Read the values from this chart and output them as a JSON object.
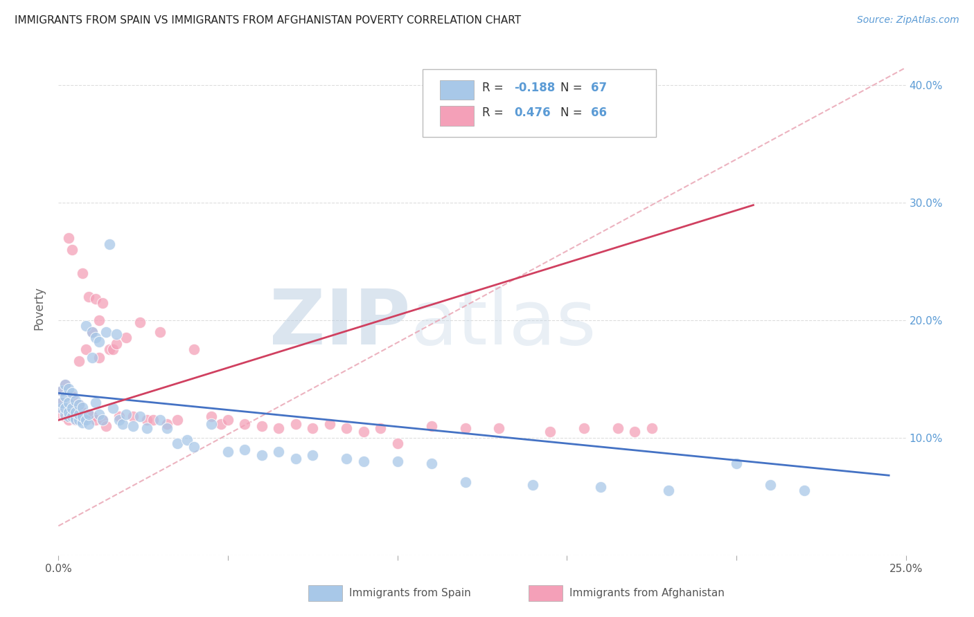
{
  "title": "IMMIGRANTS FROM SPAIN VS IMMIGRANTS FROM AFGHANISTAN POVERTY CORRELATION CHART",
  "source": "Source: ZipAtlas.com",
  "ylabel": "Poverty",
  "xlim": [
    0.0,
    0.25
  ],
  "ylim": [
    0.0,
    0.42
  ],
  "legend_r_spain": "-0.188",
  "legend_n_spain": "67",
  "legend_r_afghan": "0.476",
  "legend_n_afghan": "66",
  "spain_color": "#A8C8E8",
  "afghan_color": "#F4A0B8",
  "spain_line_color": "#4472C4",
  "afghan_line_color": "#D04060",
  "diagonal_color": "#E8A0B0",
  "watermark_zip": "ZIP",
  "watermark_atlas": "atlas",
  "background_color": "#FFFFFF",
  "grid_color": "#DDDDDD",
  "title_color": "#222222",
  "right_tick_color": "#5B9BD5",
  "spain_scatter_x": [
    0.001,
    0.001,
    0.001,
    0.002,
    0.002,
    0.002,
    0.002,
    0.003,
    0.003,
    0.003,
    0.003,
    0.004,
    0.004,
    0.004,
    0.005,
    0.005,
    0.005,
    0.006,
    0.006,
    0.006,
    0.007,
    0.007,
    0.007,
    0.008,
    0.008,
    0.009,
    0.009,
    0.01,
    0.01,
    0.011,
    0.011,
    0.012,
    0.012,
    0.013,
    0.014,
    0.015,
    0.016,
    0.017,
    0.018,
    0.019,
    0.02,
    0.022,
    0.024,
    0.026,
    0.03,
    0.032,
    0.035,
    0.038,
    0.04,
    0.045,
    0.05,
    0.055,
    0.06,
    0.065,
    0.07,
    0.075,
    0.085,
    0.09,
    0.1,
    0.11,
    0.12,
    0.14,
    0.16,
    0.18,
    0.2,
    0.21,
    0.22
  ],
  "spain_scatter_y": [
    0.125,
    0.13,
    0.14,
    0.12,
    0.125,
    0.135,
    0.145,
    0.118,
    0.122,
    0.13,
    0.142,
    0.118,
    0.125,
    0.138,
    0.116,
    0.122,
    0.132,
    0.115,
    0.12,
    0.128,
    0.113,
    0.118,
    0.126,
    0.115,
    0.195,
    0.112,
    0.12,
    0.168,
    0.19,
    0.185,
    0.13,
    0.182,
    0.12,
    0.115,
    0.19,
    0.265,
    0.125,
    0.188,
    0.115,
    0.112,
    0.12,
    0.11,
    0.118,
    0.108,
    0.115,
    0.108,
    0.095,
    0.098,
    0.092,
    0.112,
    0.088,
    0.09,
    0.085,
    0.088,
    0.082,
    0.085,
    0.082,
    0.08,
    0.08,
    0.078,
    0.062,
    0.06,
    0.058,
    0.055,
    0.078,
    0.06,
    0.055
  ],
  "afghan_scatter_x": [
    0.001,
    0.001,
    0.001,
    0.002,
    0.002,
    0.002,
    0.003,
    0.003,
    0.003,
    0.004,
    0.004,
    0.004,
    0.005,
    0.005,
    0.006,
    0.006,
    0.006,
    0.007,
    0.007,
    0.008,
    0.008,
    0.009,
    0.009,
    0.01,
    0.01,
    0.011,
    0.011,
    0.012,
    0.012,
    0.013,
    0.013,
    0.014,
    0.015,
    0.016,
    0.017,
    0.018,
    0.02,
    0.022,
    0.024,
    0.026,
    0.028,
    0.03,
    0.032,
    0.035,
    0.04,
    0.045,
    0.048,
    0.05,
    0.055,
    0.06,
    0.065,
    0.07,
    0.075,
    0.08,
    0.085,
    0.09,
    0.095,
    0.1,
    0.11,
    0.12,
    0.13,
    0.145,
    0.155,
    0.165,
    0.17,
    0.175
  ],
  "afghan_scatter_y": [
    0.12,
    0.13,
    0.14,
    0.118,
    0.126,
    0.145,
    0.115,
    0.125,
    0.27,
    0.12,
    0.135,
    0.26,
    0.115,
    0.12,
    0.118,
    0.128,
    0.165,
    0.122,
    0.24,
    0.118,
    0.175,
    0.12,
    0.22,
    0.118,
    0.19,
    0.115,
    0.218,
    0.168,
    0.2,
    0.115,
    0.215,
    0.11,
    0.175,
    0.175,
    0.18,
    0.118,
    0.185,
    0.118,
    0.198,
    0.115,
    0.115,
    0.19,
    0.112,
    0.115,
    0.175,
    0.118,
    0.112,
    0.115,
    0.112,
    0.11,
    0.108,
    0.112,
    0.108,
    0.112,
    0.108,
    0.105,
    0.108,
    0.095,
    0.11,
    0.108,
    0.108,
    0.105,
    0.108,
    0.108,
    0.105,
    0.108
  ],
  "spain_line_x": [
    0.0,
    0.245
  ],
  "spain_line_y": [
    0.138,
    0.068
  ],
  "afghan_line_x": [
    0.0,
    0.205
  ],
  "afghan_line_y": [
    0.115,
    0.298
  ],
  "diagonal_line_x": [
    0.0,
    0.25
  ],
  "diagonal_line_y": [
    0.025,
    0.415
  ]
}
